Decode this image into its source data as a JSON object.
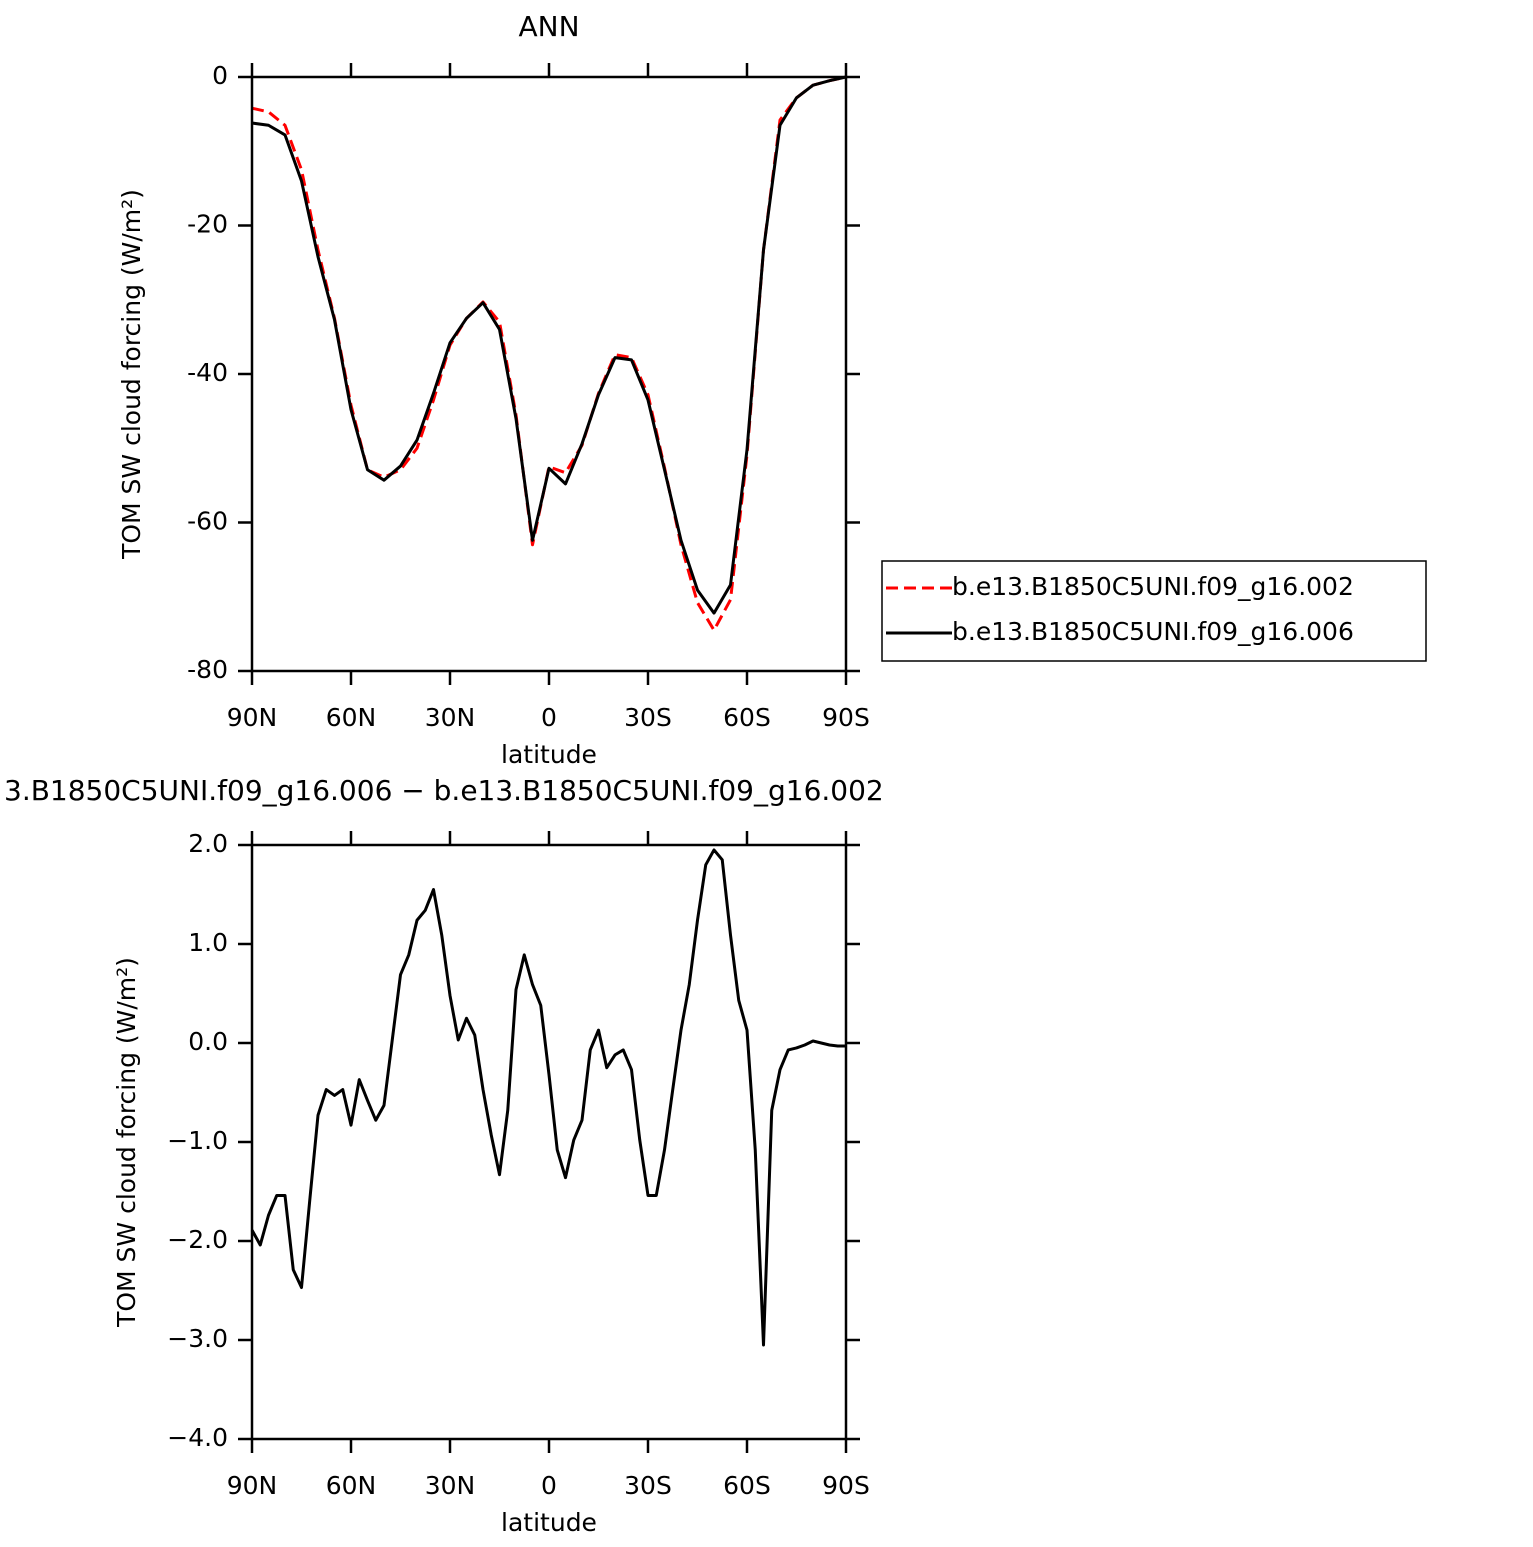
{
  "chart_data": [
    {
      "type": "line",
      "title": "ANN",
      "xlabel": "latitude",
      "ylabel": "TOM SW cloud forcing (W/m²)",
      "x": [
        90,
        85,
        80,
        75,
        70,
        65,
        60,
        55,
        50,
        45,
        40,
        35,
        30,
        25,
        20,
        15,
        10,
        5,
        0,
        -5,
        -10,
        -15,
        -20,
        -25,
        -30,
        -35,
        -40,
        -45,
        -50,
        -55,
        -60,
        -65,
        -70,
        -75,
        -80,
        -85,
        -90
      ],
      "xlim": [
        90,
        -90
      ],
      "xticks": [
        {
          "value": 90,
          "label": "90N"
        },
        {
          "value": 60,
          "label": "60N"
        },
        {
          "value": 30,
          "label": "30N"
        },
        0,
        {
          "value": -30,
          "label": "30S"
        },
        {
          "value": -60,
          "label": "60S"
        },
        {
          "value": -90,
          "label": "90S"
        }
      ],
      "ylim": [
        -80,
        0
      ],
      "yticks": [
        0,
        -20,
        -40,
        -60,
        -80
      ],
      "legend": "right",
      "series": [
        {
          "name": "b.e13.B1850C5UNI.f09_g16.002",
          "color": "#ff0000",
          "dashed": true,
          "values": [
            -4.2,
            -4.7,
            -6.5,
            -12.5,
            -23.3,
            -32.5,
            -44.2,
            -52.9,
            -53.9,
            -52.9,
            -50,
            -43.5,
            -36.1,
            -32.5,
            -30.3,
            -33,
            -45.5,
            -63,
            -52.5,
            -53.3,
            -49.6,
            -42.6,
            -37.4,
            -37.8,
            -42.8,
            -52.6,
            -63,
            -70.8,
            -74.5,
            -70.4,
            -50.9,
            -23.3,
            -5.8,
            -2.8,
            -1.1,
            -0.5,
            0
          ]
        },
        {
          "name": "b.e13.B1850C5UNI.f09_g16.006",
          "color": "#000000",
          "dashed": false,
          "values": [
            -6.2,
            -6.5,
            -7.8,
            -14,
            -24.2,
            -32.7,
            -44.8,
            -52.9,
            -54.3,
            -52.4,
            -48.9,
            -42.6,
            -35.8,
            -32.5,
            -30.4,
            -34,
            -46,
            -62.4,
            -52.7,
            -54.8,
            -49.4,
            -42.8,
            -37.8,
            -38.1,
            -43.5,
            -52.9,
            -62.4,
            -69.1,
            -72.2,
            -68.4,
            -50.2,
            -23.3,
            -6.5,
            -2.8,
            -1.1,
            -0.5,
            0
          ]
        }
      ]
    },
    {
      "type": "line",
      "title": "3.B1850C5UNI.f09_g16.006 − b.e13.B1850C5UNI.f09_g16.002",
      "xlabel": "latitude",
      "ylabel": "TOM SW cloud forcing (W/m²)",
      "x": [
        90,
        87.5,
        85,
        82.5,
        80,
        77.5,
        75,
        72.5,
        70,
        67.5,
        65,
        62.5,
        60,
        57.5,
        55,
        52.5,
        50,
        47.5,
        45,
        42.5,
        40,
        37.5,
        35,
        32.5,
        30,
        27.5,
        25,
        22.5,
        20,
        17.5,
        15,
        12.5,
        10,
        7.5,
        5,
        2.5,
        0,
        -2.5,
        -5,
        -7.5,
        -10,
        -12.5,
        -15,
        -17.5,
        -20,
        -22.5,
        -25,
        -27.5,
        -30,
        -32.5,
        -35,
        -37.5,
        -40,
        -42.5,
        -45,
        -47.5,
        -50,
        -52.5,
        -55,
        -57.5,
        -60,
        -62.5,
        -65,
        -67.5,
        -70,
        -72.5,
        -75,
        -77.5,
        -80,
        -82.5,
        -85,
        -87.5,
        -90
      ],
      "xlim": [
        90,
        -90
      ],
      "xticks": [
        {
          "value": 90,
          "label": "90N"
        },
        {
          "value": 60,
          "label": "60N"
        },
        {
          "value": 30,
          "label": "30N"
        },
        0,
        {
          "value": -30,
          "label": "30S"
        },
        {
          "value": -60,
          "label": "60S"
        },
        {
          "value": -90,
          "label": "90S"
        }
      ],
      "ylim": [
        -4,
        2
      ],
      "yticks": [
        {
          "value": 2,
          "label": "2.0"
        },
        {
          "value": 1,
          "label": "1.0"
        },
        {
          "value": 0,
          "label": "0.0"
        },
        {
          "value": -1,
          "label": "−1.0"
        },
        {
          "value": -2,
          "label": "−2.0"
        },
        {
          "value": -3,
          "label": "−3.0"
        },
        {
          "value": -4,
          "label": "−4.0"
        }
      ],
      "series": [
        {
          "color": "#000000",
          "values": [
            -1.89,
            -2.04,
            -1.74,
            -1.54,
            -1.54,
            -2.29,
            -2.47,
            -1.59,
            -0.73,
            -0.47,
            -0.53,
            -0.47,
            -0.83,
            -0.37,
            -0.58,
            -0.78,
            -0.63,
            0.03,
            0.69,
            0.89,
            1.24,
            1.34,
            1.55,
            1.09,
            0.48,
            0.03,
            0.25,
            0.08,
            -0.47,
            -0.93,
            -1.33,
            -0.68,
            0.54,
            0.89,
            0.59,
            0.38,
            -0.32,
            -1.08,
            -1.36,
            -0.98,
            -0.78,
            -0.07,
            0.13,
            -0.25,
            -0.12,
            -0.07,
            -0.27,
            -0.98,
            -1.54,
            -1.54,
            -1.08,
            -0.47,
            0.13,
            0.59,
            1.24,
            1.8,
            1.95,
            1.85,
            1.09,
            0.43,
            0.13,
            -1.08,
            -3.05,
            -0.68,
            -0.27,
            -0.07,
            -0.05,
            -0.02,
            0.02,
            0,
            -0.02,
            -0.03,
            -0.03
          ]
        }
      ]
    }
  ]
}
